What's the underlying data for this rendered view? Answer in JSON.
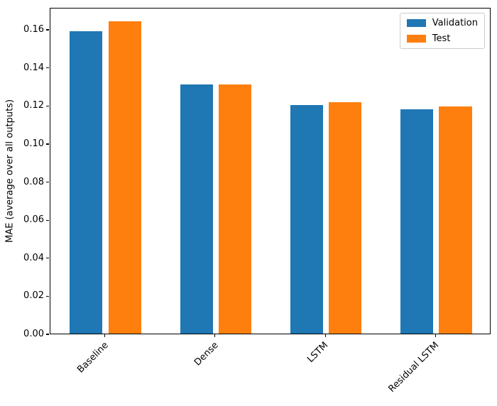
{
  "chart_data": {
    "type": "bar",
    "categories": [
      "Baseline",
      "Dense",
      "LSTM",
      "Residual LSTM"
    ],
    "series": [
      {
        "name": "Validation",
        "color": "#1f77b4",
        "values": [
          0.159,
          0.131,
          0.12,
          0.118
        ]
      },
      {
        "name": "Test",
        "color": "#ff7f0e",
        "values": [
          0.164,
          0.131,
          0.1215,
          0.1195
        ]
      }
    ],
    "title": "",
    "xlabel": "",
    "ylabel": "MAE (average over all outputs)",
    "ylim": [
      0,
      0.1716
    ],
    "yticks": [
      0,
      0.02,
      0.04,
      0.06,
      0.08,
      0.1,
      0.12,
      0.14,
      0.16
    ],
    "ytick_decimals": 2,
    "xtick_rotation": 45,
    "grid": false,
    "legend_position": "upper right",
    "bar_width_frac": 0.297,
    "bar_offset_frac": 0.175
  }
}
